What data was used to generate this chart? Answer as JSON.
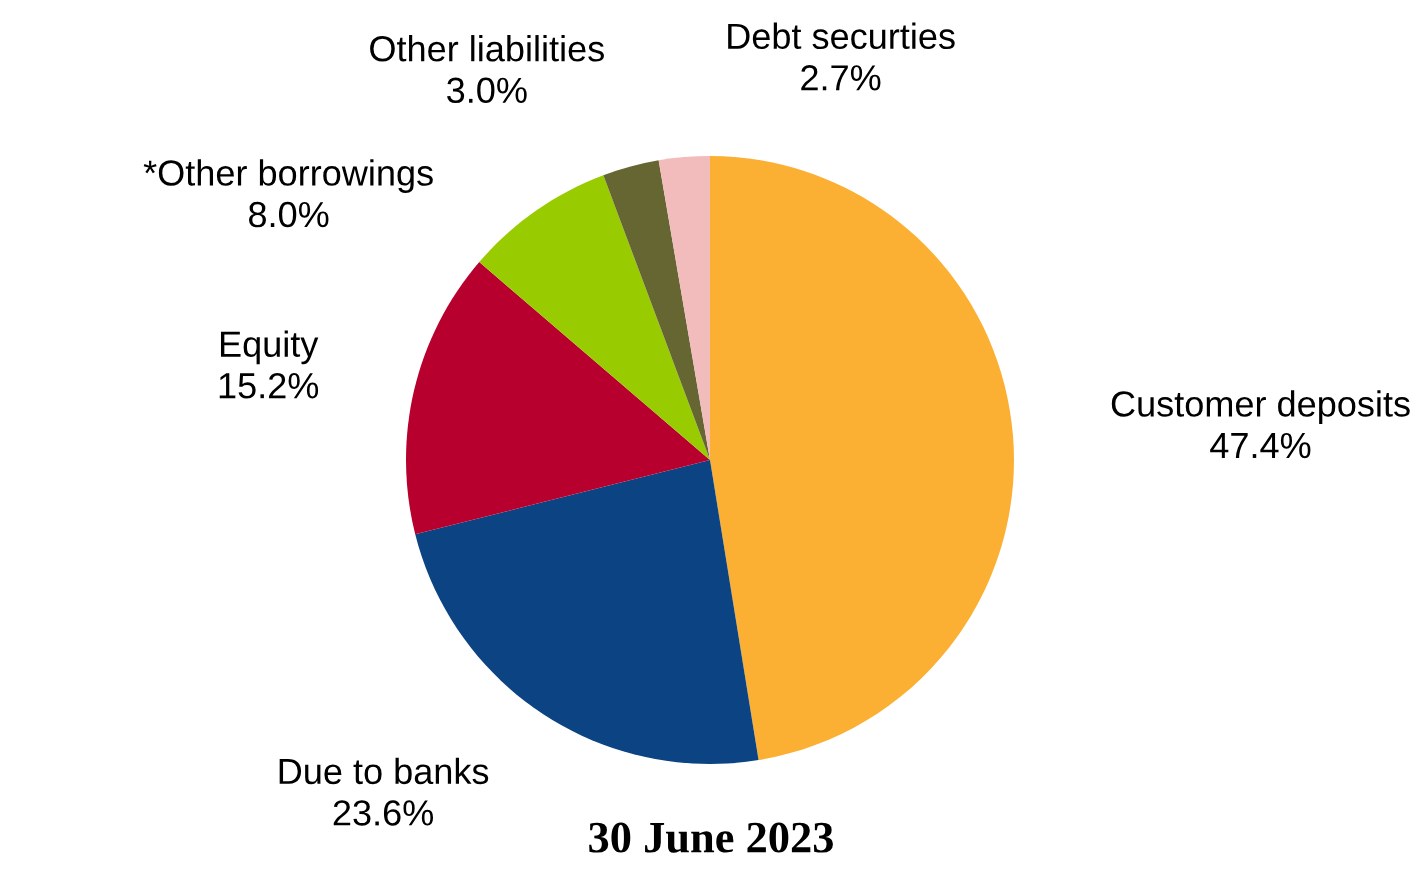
{
  "chart_data": {
    "type": "pie",
    "title": "30 June 2023",
    "categories": [
      "Customer deposits",
      "Due to banks",
      "Equity",
      "*Other borrowings",
      "Other liabilities",
      "Debt securties"
    ],
    "values": [
      47.4,
      23.6,
      15.2,
      8.0,
      3.0,
      2.7
    ],
    "value_labels": [
      "47.4%",
      "23.6%",
      "15.2%",
      "8.0%",
      "3.0%",
      "2.7%"
    ],
    "colors": [
      "#fbb034",
      "#0b4383",
      "#b8002e",
      "#99cc00",
      "#666633",
      "#f2bcbc"
    ],
    "legend": false
  }
}
